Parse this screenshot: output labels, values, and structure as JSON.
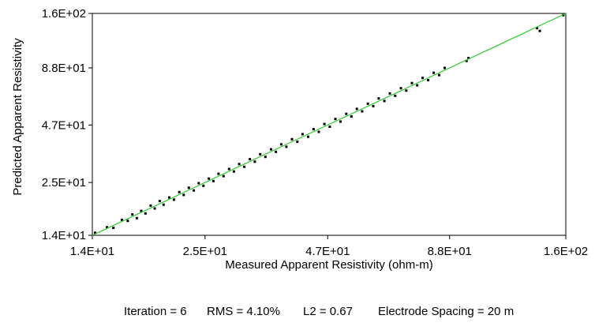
{
  "chart_data": {
    "type": "scatter",
    "scale": "log",
    "xlabel": "Measured Apparent Resistivity (ohm-m)",
    "ylabel": "Predicted Apparent Resistivity",
    "xlim": [
      14,
      160
    ],
    "ylim": [
      14,
      160
    ],
    "x_ticks": [
      14,
      25,
      47,
      88,
      160
    ],
    "x_tick_labels": [
      "1.4E+01",
      "2.5E+01",
      "4.7E+01",
      "8.8E+01",
      "1.6E+02"
    ],
    "y_ticks": [
      14,
      25,
      47,
      88,
      160
    ],
    "y_tick_labels": [
      "1.4E+01",
      "2.5E+01",
      "4.7E+01",
      "8.8E+01",
      "1.6E+02"
    ],
    "reference_line": {
      "x": [
        14,
        160
      ],
      "y": [
        14,
        160
      ],
      "color": "#2ecc2e"
    },
    "point_color": "#000000",
    "grid": false,
    "series": [
      {
        "points": [
          [
            14.2,
            14.4
          ],
          [
            15.1,
            15.3
          ],
          [
            15.6,
            15.2
          ],
          [
            16.3,
            16.6
          ],
          [
            16.8,
            16.4
          ],
          [
            17.2,
            17.6
          ],
          [
            17.6,
            16.9
          ],
          [
            18.0,
            18.3
          ],
          [
            18.4,
            17.8
          ],
          [
            18.9,
            19.4
          ],
          [
            19.3,
            18.8
          ],
          [
            19.8,
            20.4
          ],
          [
            20.2,
            19.6
          ],
          [
            20.8,
            21.2
          ],
          [
            21.3,
            20.7
          ],
          [
            21.9,
            22.5
          ],
          [
            22.4,
            21.8
          ],
          [
            23.0,
            23.6
          ],
          [
            23.6,
            22.9
          ],
          [
            24.2,
            24.8
          ],
          [
            24.8,
            24.1
          ],
          [
            25.5,
            26.1
          ],
          [
            26.1,
            25.4
          ],
          [
            26.8,
            27.5
          ],
          [
            27.5,
            26.8
          ],
          [
            28.3,
            29.0
          ],
          [
            29.0,
            28.2
          ],
          [
            29.8,
            30.6
          ],
          [
            30.6,
            29.7
          ],
          [
            31.5,
            32.3
          ],
          [
            32.3,
            31.4
          ],
          [
            33.2,
            34.1
          ],
          [
            34.1,
            33.1
          ],
          [
            35.1,
            36.0
          ],
          [
            36.0,
            35.0
          ],
          [
            37.0,
            38.0
          ],
          [
            38.0,
            37.0
          ],
          [
            39.1,
            40.2
          ],
          [
            40.2,
            39.1
          ],
          [
            41.3,
            42.5
          ],
          [
            42.5,
            41.3
          ],
          [
            43.7,
            44.9
          ],
          [
            44.9,
            43.6
          ],
          [
            46.2,
            47.5
          ],
          [
            47.5,
            46.1
          ],
          [
            48.9,
            50.2
          ],
          [
            50.2,
            48.8
          ],
          [
            51.7,
            53.1
          ],
          [
            53.1,
            51.6
          ],
          [
            54.6,
            56.1
          ],
          [
            56.1,
            54.6
          ],
          [
            57.8,
            59.4
          ],
          [
            59.4,
            57.8
          ],
          [
            61.1,
            62.9
          ],
          [
            62.9,
            61.2
          ],
          [
            64.7,
            66.5
          ],
          [
            66.5,
            64.8
          ],
          [
            68.5,
            70.4
          ],
          [
            70.4,
            68.6
          ],
          [
            72.5,
            74.5
          ],
          [
            74.5,
            72.6
          ],
          [
            76.6,
            78.8
          ],
          [
            78.8,
            76.9
          ],
          [
            81.1,
            83.4
          ],
          [
            83.4,
            81.3
          ],
          [
            85.8,
            88.0
          ],
          [
            96,
            95
          ],
          [
            97,
            98
          ],
          [
            138,
            136
          ],
          [
            140,
            132
          ],
          [
            158,
            157
          ]
        ]
      }
    ]
  },
  "footer": {
    "iteration": "Iteration = 6",
    "rms": "RMS = 4.10%",
    "l2": "L2 = 0.67",
    "spacing": "Electrode Spacing = 20 m"
  }
}
